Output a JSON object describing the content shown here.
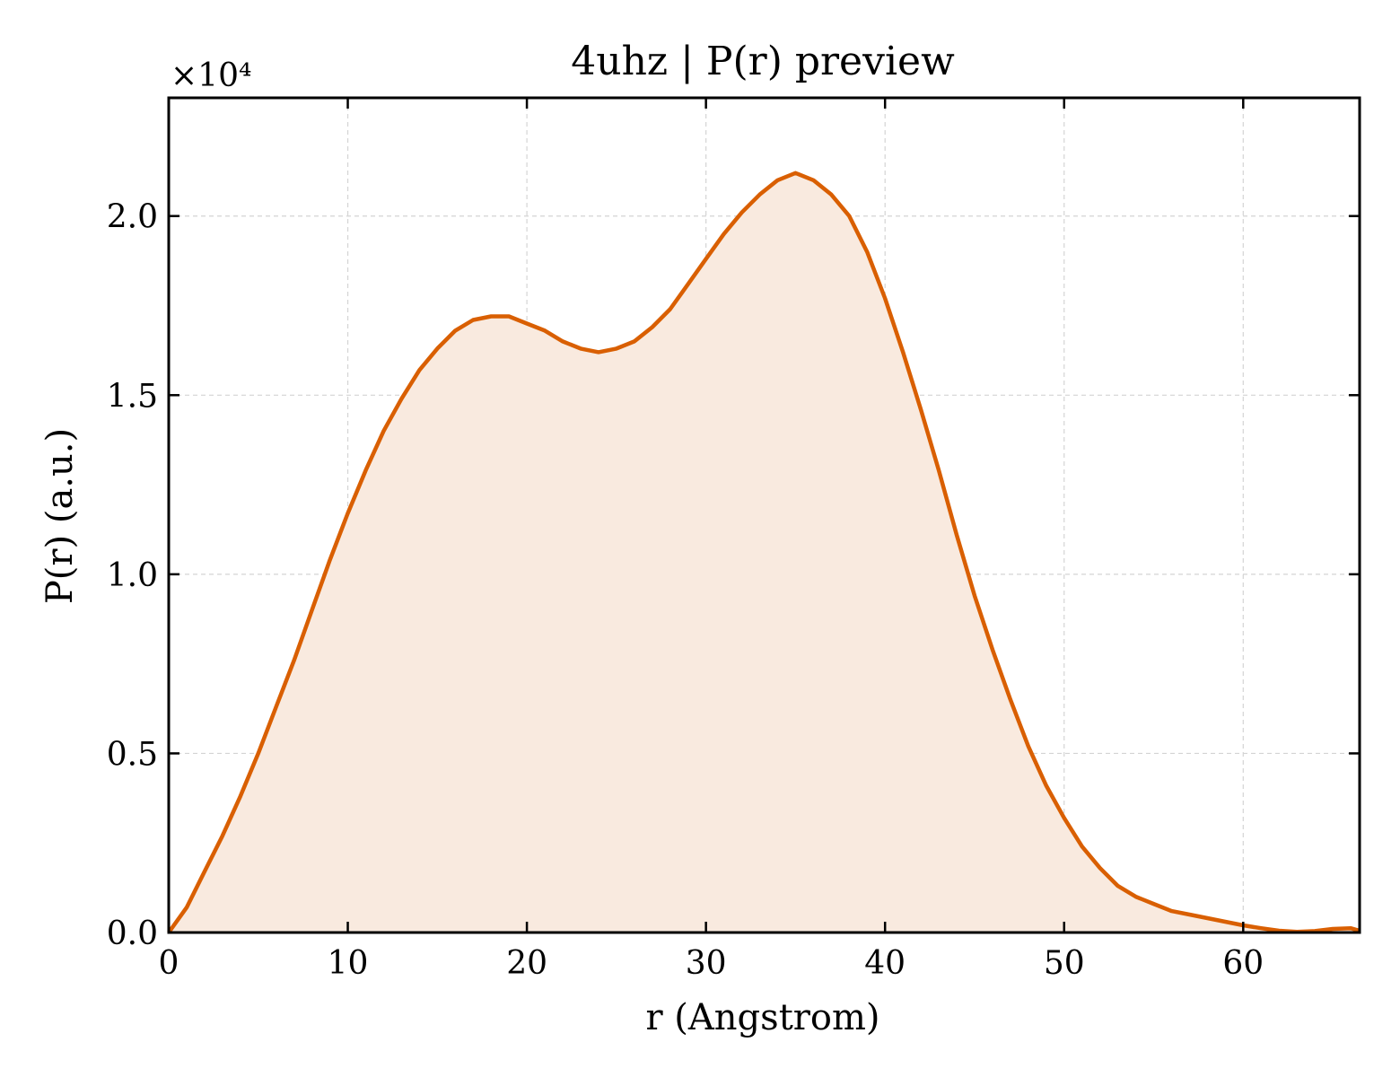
{
  "chart_data": {
    "type": "area",
    "title": "4uhz | P(r) preview",
    "xlabel": "r (Angstrom)",
    "ylabel": "P(r) (a.u.)",
    "y_scale_label": "×10⁴",
    "xlim": [
      0,
      66.5
    ],
    "ylim": [
      0,
      2.33
    ],
    "grid": true,
    "x_ticks": [
      0,
      10,
      20,
      30,
      40,
      50,
      60
    ],
    "x_tick_labels": [
      "0",
      "10",
      "20",
      "30",
      "40",
      "50",
      "60"
    ],
    "y_ticks": [
      0,
      0.5,
      1.0,
      1.5,
      2.0
    ],
    "y_tick_labels": [
      "0.0",
      "0.5",
      "1.0",
      "1.5",
      "2.0"
    ],
    "line_color": "#d95f02",
    "fill_color": "#f9eadf",
    "series": [
      {
        "x": [
          0,
          1,
          2,
          3,
          4,
          5,
          6,
          7,
          8,
          9,
          10,
          11,
          12,
          13,
          14,
          15,
          16,
          17,
          18,
          19,
          20,
          21,
          22,
          23,
          24,
          25,
          26,
          27,
          28,
          29,
          30,
          31,
          32,
          33,
          34,
          35,
          36,
          37,
          38,
          39,
          40,
          41,
          42,
          43,
          44,
          45,
          46,
          47,
          48,
          49,
          50,
          51,
          52,
          53,
          54,
          55,
          56,
          57,
          58,
          59,
          60,
          61,
          62,
          63,
          64,
          65,
          66,
          66.5
        ],
        "y": [
          0.0,
          0.07,
          0.17,
          0.27,
          0.38,
          0.5,
          0.63,
          0.76,
          0.9,
          1.04,
          1.17,
          1.29,
          1.4,
          1.49,
          1.57,
          1.63,
          1.68,
          1.71,
          1.72,
          1.72,
          1.7,
          1.68,
          1.65,
          1.63,
          1.62,
          1.63,
          1.65,
          1.69,
          1.74,
          1.81,
          1.88,
          1.95,
          2.01,
          2.06,
          2.1,
          2.12,
          2.1,
          2.06,
          2.0,
          1.9,
          1.77,
          1.62,
          1.46,
          1.29,
          1.11,
          0.94,
          0.79,
          0.65,
          0.52,
          0.41,
          0.32,
          0.24,
          0.18,
          0.13,
          0.1,
          0.08,
          0.06,
          0.05,
          0.04,
          0.03,
          0.02,
          0.012,
          0.005,
          0.002,
          0.004,
          0.01,
          0.012,
          0.005
        ]
      }
    ]
  }
}
